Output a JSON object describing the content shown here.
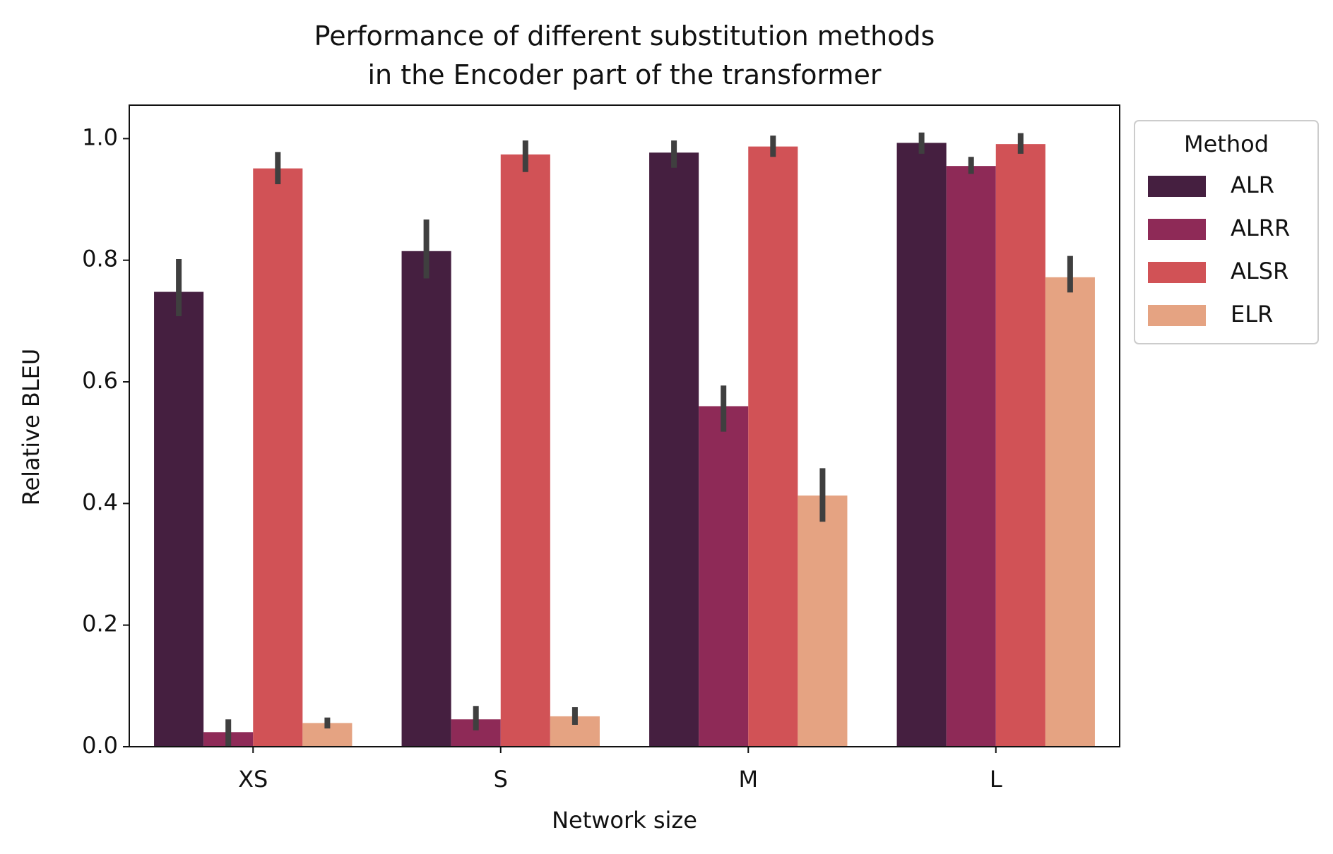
{
  "chart_data": {
    "type": "bar",
    "title": "Performance of different substitution methods\nin the Encoder part of the transformer",
    "xlabel": "Network size",
    "ylabel": "Relative BLEU",
    "categories": [
      "XS",
      "S",
      "M",
      "L"
    ],
    "series": [
      {
        "name": "ALR",
        "color": "#451f40",
        "values": [
          0.748,
          0.815,
          0.977,
          0.993
        ],
        "ci_low": [
          0.708,
          0.77,
          0.952,
          0.975
        ],
        "ci_high": [
          0.802,
          0.867,
          0.997,
          1.01
        ]
      },
      {
        "name": "ALRR",
        "color": "#8e2a57",
        "values": [
          0.024,
          0.045,
          0.56,
          0.955
        ],
        "ci_low": [
          0.0,
          0.027,
          0.518,
          0.942
        ],
        "ci_high": [
          0.045,
          0.067,
          0.594,
          0.97
        ]
      },
      {
        "name": "ALSR",
        "color": "#d15256",
        "values": [
          0.951,
          0.974,
          0.987,
          0.991
        ],
        "ci_low": [
          0.925,
          0.945,
          0.97,
          0.975
        ],
        "ci_high": [
          0.978,
          0.997,
          1.005,
          1.009
        ]
      },
      {
        "name": "ELR",
        "color": "#e5a382",
        "values": [
          0.039,
          0.05,
          0.413,
          0.772
        ],
        "ci_low": [
          0.03,
          0.036,
          0.37,
          0.747
        ],
        "ci_high": [
          0.048,
          0.065,
          0.458,
          0.807
        ]
      }
    ],
    "error_bar_color": "#3f3f3f",
    "ylim": [
      0,
      1.055
    ],
    "yticks": [
      {
        "value": 0,
        "label": "0.0"
      },
      {
        "value": 0.2,
        "label": "0.2"
      },
      {
        "value": 0.4,
        "label": "0.4"
      },
      {
        "value": 0.6,
        "label": "0.6"
      },
      {
        "value": 0.8,
        "label": "0.8"
      },
      {
        "value": 1,
        "label": "1.0"
      }
    ],
    "grid": false,
    "legend": {
      "title": "Method",
      "loc": "outside upper right"
    }
  }
}
